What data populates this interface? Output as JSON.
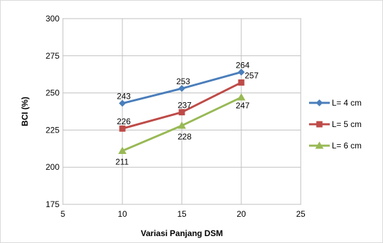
{
  "chart_data": {
    "type": "line",
    "xlabel": "Variasi Panjang DSM",
    "ylabel": "BCI (%)",
    "xlim": [
      5,
      25
    ],
    "ylim": [
      175,
      300
    ],
    "xticks": [
      5,
      10,
      15,
      20,
      25
    ],
    "yticks": [
      175,
      200,
      225,
      250,
      275,
      300
    ],
    "x": [
      10,
      15,
      20
    ],
    "grid": "on",
    "legend_position": "right",
    "series": [
      {
        "name": "L= 4 cm",
        "marker": "diamond",
        "color": "#4a7ebb",
        "values": [
          243,
          253,
          264
        ],
        "labels": [
          "243",
          "253",
          "264"
        ]
      },
      {
        "name": "L= 5 cm",
        "marker": "square",
        "color": "#be4b48",
        "values": [
          226,
          237,
          257
        ],
        "labels": [
          "226",
          "237",
          "257"
        ]
      },
      {
        "name": "L= 6 cm",
        "marker": "triangle",
        "color": "#98b954",
        "values": [
          211,
          228,
          247
        ],
        "labels": [
          "211",
          "228",
          "247"
        ]
      }
    ]
  }
}
